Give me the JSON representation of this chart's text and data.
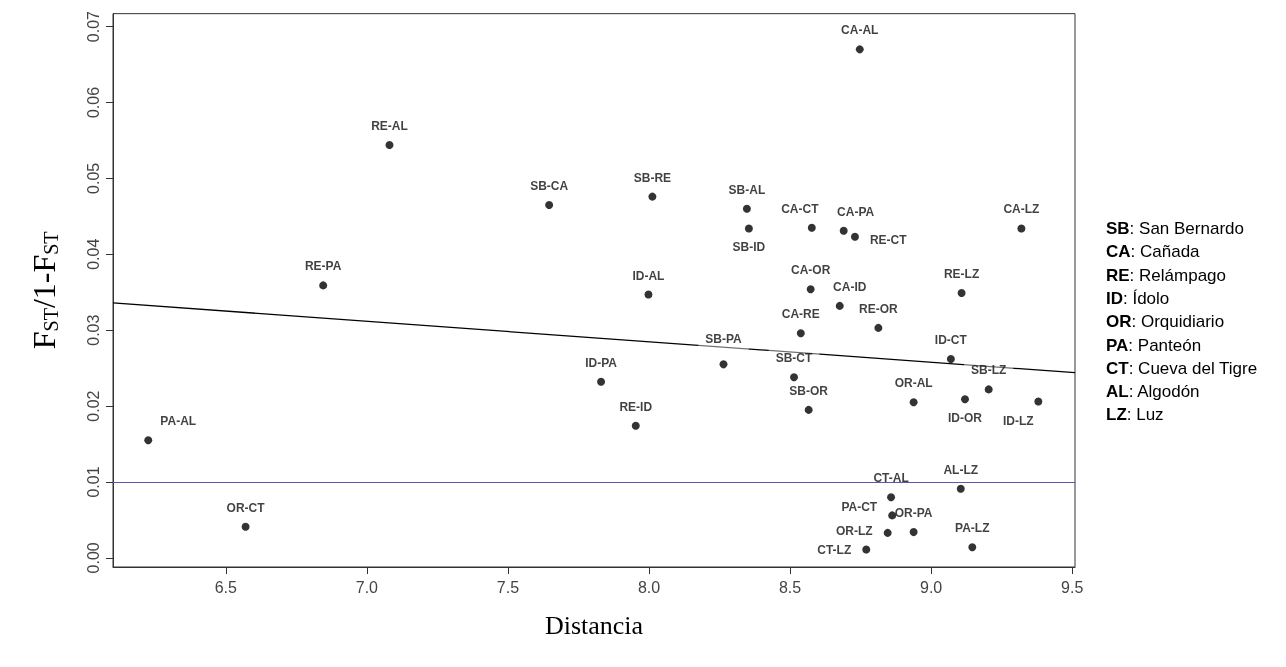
{
  "chart_data": {
    "type": "scatter",
    "xlabel": "Distancia",
    "ylabel": "F$_{ST}$/1-F$_{ST}$",
    "xlim": [
      6.1,
      9.51
    ],
    "ylim": [
      -0.0012,
      0.0717
    ],
    "xticks": [
      {
        "value": 6.5,
        "label": "6.5"
      },
      {
        "value": 7,
        "label": "7.0"
      },
      {
        "value": 7.5,
        "label": "7.5"
      },
      {
        "value": 8,
        "label": "8.0"
      },
      {
        "value": 8.5,
        "label": "8.5"
      },
      {
        "value": 9,
        "label": "9.0"
      },
      {
        "value": 9.5,
        "label": "9.5"
      }
    ],
    "yticks": [
      {
        "value": 0,
        "label": "0.00"
      },
      {
        "value": 0.01,
        "label": "0.01"
      },
      {
        "value": 0.02,
        "label": "0.02"
      },
      {
        "value": 0.03,
        "label": "0.03"
      },
      {
        "value": 0.04,
        "label": "0.04"
      },
      {
        "value": 0.05,
        "label": "0.05"
      },
      {
        "value": 0.06,
        "label": "0.06"
      },
      {
        "value": 0.07,
        "label": "0.07"
      }
    ],
    "grid": false,
    "series": [
      {
        "marker": "circle",
        "color": "#000000",
        "x": [
          6.225,
          6.57,
          6.845,
          7.08,
          7.646,
          7.83,
          7.953,
          7.998,
          8.012,
          8.264,
          8.347,
          8.354,
          8.514,
          8.538,
          8.566,
          8.573,
          8.577,
          8.676,
          8.69,
          8.73,
          8.747,
          8.77,
          8.813,
          8.846,
          8.858,
          8.862,
          8.938,
          8.938,
          9.07,
          9.105,
          9.108,
          9.12,
          9.146,
          9.204,
          9.32,
          9.38
        ],
        "values": [
          0.0155,
          0.0041,
          0.0359,
          0.0544,
          0.0465,
          0.0232,
          0.0174,
          0.0347,
          0.0476,
          0.0255,
          0.046,
          0.0434,
          0.0238,
          0.0296,
          0.0195,
          0.0354,
          0.0435,
          0.0332,
          0.0431,
          0.0423,
          0.067,
          0.0011,
          0.0303,
          0.0033,
          0.008,
          0.0056,
          0.0205,
          0.0034,
          0.0262,
          0.0091,
          0.0349,
          0.0209,
          0.0014,
          0.0222,
          0.0434,
          0.0206
        ]
      },
      {
        "type": "line",
        "color": "#000000",
        "line_style": "solid",
        "x": [
          6.1,
          9.51
        ],
        "values": [
          0.0336,
          0.0244
        ]
      }
    ],
    "ref_lines": [
      {
        "axis": "y",
        "value": 0.0102,
        "color": "#5a5aa8"
      }
    ],
    "annotations": [
      "SB: San Bernardo",
      "CA: Cañada",
      "RE: Relámpago",
      "ID: Ídolo",
      "OR: Orquidiario",
      "PA: Panteón",
      "CT: Cueva del Tigre",
      "AL: Algodón",
      "LZ: Luz",
      {
        "text": "PA-AL",
        "x": 6.225,
        "y": 0.0155
      },
      {
        "text": "OR-CT",
        "x": 6.57,
        "y": 0.0041
      },
      {
        "text": "RE-PA",
        "x": 6.845,
        "y": 0.0359
      },
      {
        "text": "RE-AL",
        "x": 7.08,
        "y": 0.0544
      },
      {
        "text": "SB-CA",
        "x": 7.646,
        "y": 0.0465
      },
      {
        "text": "ID-PA",
        "x": 7.83,
        "y": 0.0232
      },
      {
        "text": "RE-ID",
        "x": 7.953,
        "y": 0.0174
      },
      {
        "text": "ID-AL",
        "x": 7.998,
        "y": 0.0347
      },
      {
        "text": "SB-RE",
        "x": 8.012,
        "y": 0.0476
      },
      {
        "text": "SB-PA",
        "x": 8.264,
        "y": 0.0255
      },
      {
        "text": "SB-AL",
        "x": 8.347,
        "y": 0.046
      },
      {
        "text": "SB-ID",
        "x": 8.354,
        "y": 0.0434
      },
      {
        "text": "SB-CT",
        "x": 8.514,
        "y": 0.0238
      },
      {
        "text": "CA-RE",
        "x": 8.538,
        "y": 0.0296
      },
      {
        "text": "SB-OR",
        "x": 8.566,
        "y": 0.0195
      },
      {
        "text": "CA-OR",
        "x": 8.573,
        "y": 0.0354
      },
      {
        "text": "CA-CT",
        "x": 8.577,
        "y": 0.0435
      },
      {
        "text": "CA-ID",
        "x": 8.676,
        "y": 0.0332
      },
      {
        "text": "CA-PA",
        "x": 8.69,
        "y": 0.0431
      },
      {
        "text": "RE-CT",
        "x": 8.73,
        "y": 0.0423
      },
      {
        "text": "CA-AL",
        "x": 8.747,
        "y": 0.067
      },
      {
        "text": "CT-LZ",
        "x": 8.77,
        "y": 0.0011
      },
      {
        "text": "RE-OR",
        "x": 8.813,
        "y": 0.0303
      },
      {
        "text": "OR-LZ",
        "x": 8.846,
        "y": 0.0033
      },
      {
        "text": "CT-AL",
        "x": 8.858,
        "y": 0.008
      },
      {
        "text": "PA-CT",
        "x": 8.862,
        "y": 0.0056
      },
      {
        "text": "OR-AL",
        "x": 8.938,
        "y": 0.0205
      },
      {
        "text": "OR-PA",
        "x": 8.938,
        "y": 0.0034
      },
      {
        "text": "ID-CT",
        "x": 9.07,
        "y": 0.0262
      },
      {
        "text": "AL-LZ",
        "x": 9.105,
        "y": 0.0091
      },
      {
        "text": "RE-LZ",
        "x": 9.108,
        "y": 0.0349
      },
      {
        "text": "ID-OR",
        "x": 9.12,
        "y": 0.0209
      },
      {
        "text": "PA-LZ",
        "x": 9.146,
        "y": 0.0014
      },
      {
        "text": "SB-LZ",
        "x": 9.204,
        "y": 0.0222
      },
      {
        "text": "CA-LZ",
        "x": 9.32,
        "y": 0.0434
      },
      {
        "text": "ID-LZ",
        "x": 9.38,
        "y": 0.0206
      }
    ]
  }
}
